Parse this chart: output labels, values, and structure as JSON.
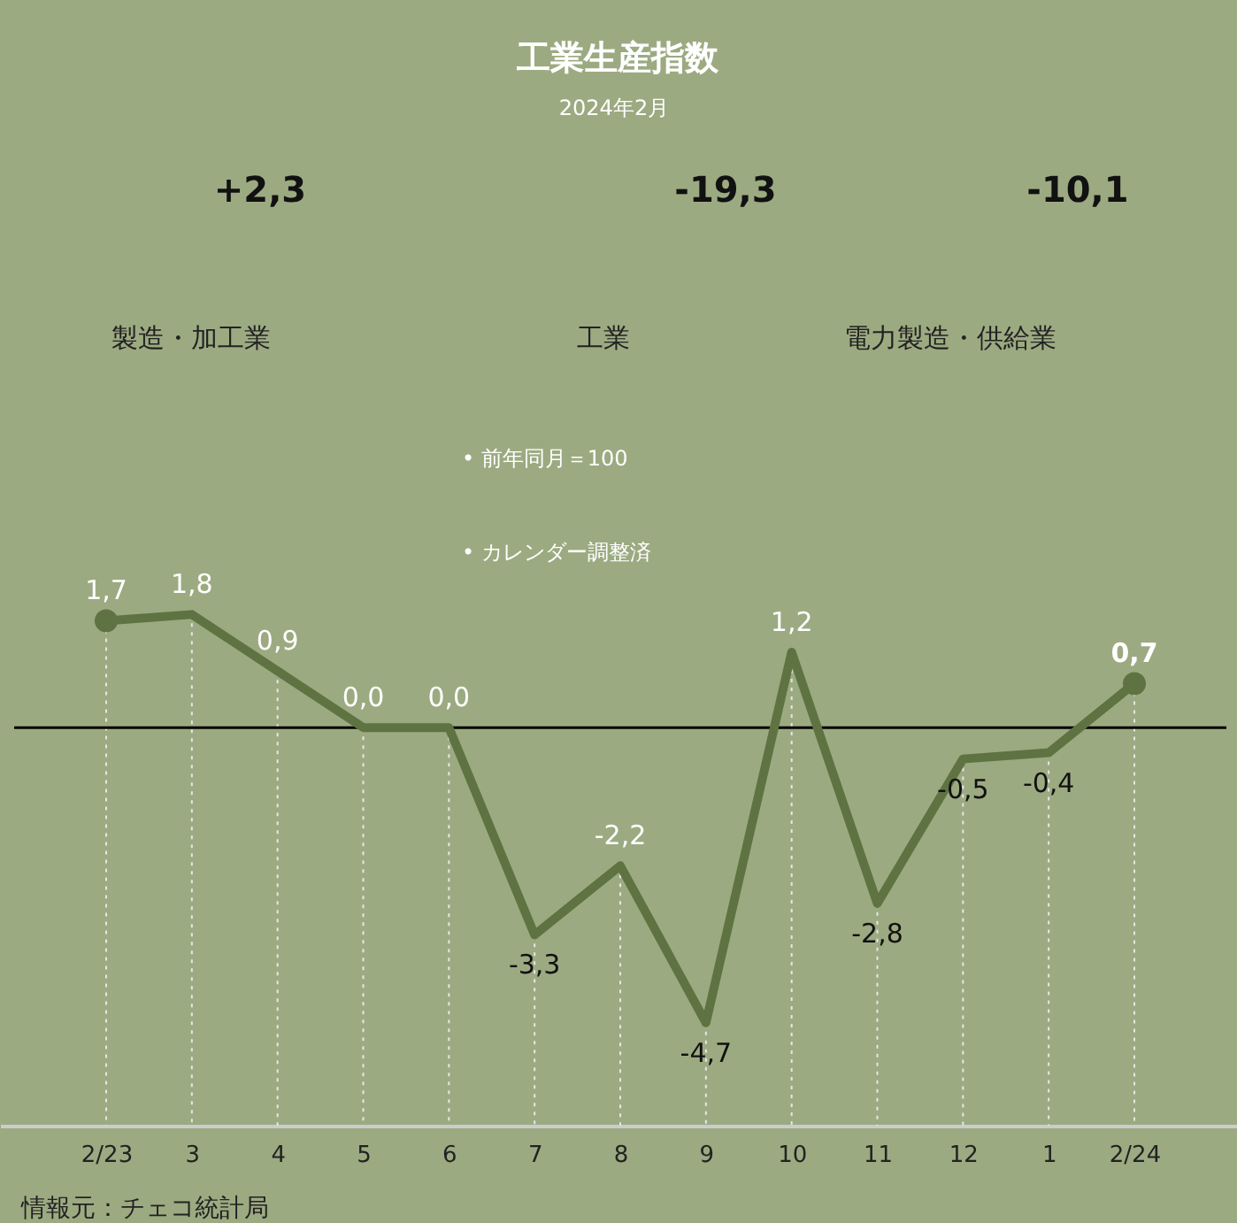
{
  "chart_data": {
    "type": "line",
    "title": "工業生産指数",
    "subtitle": "2024年2月",
    "categories": [
      "2/23",
      "3",
      "4",
      "5",
      "6",
      "7",
      "8",
      "9",
      "10",
      "11",
      "12",
      "1",
      "2/24"
    ],
    "series": [
      {
        "color": "#5f7342",
        "values": [
          1.7,
          1.8,
          0.9,
          0.0,
          0.0,
          -3.3,
          -2.2,
          -4.7,
          1.2,
          -2.8,
          -0.5,
          -0.4,
          0.7
        ],
        "value_labels": [
          "1,7",
          "1,8",
          "0,9",
          "0,0",
          "0,0",
          "-3,3",
          "-2,2",
          "-4,7",
          "1,2",
          "-2,8",
          "-0,5",
          "-0,4",
          "0,7"
        ]
      },
      {
        "type": "scatter",
        "color": "#5f7342",
        "x": [
          "2/23",
          "2/24"
        ],
        "values": [
          1.7,
          0.7
        ]
      }
    ],
    "ref_lines": [
      {
        "axis": "y",
        "value": 0,
        "color": "#000000"
      }
    ],
    "grid": "x",
    "line_style": "solid",
    "tick_labels": "x",
    "annotations": [
      "+2,3",
      "製造・加工業",
      "-19,3",
      "工業",
      "-10,1",
      "電力製造・供給業",
      "• 前年同月＝100",
      "• カレンダー調整済",
      "情報元：チェコ統計局"
    ]
  }
}
